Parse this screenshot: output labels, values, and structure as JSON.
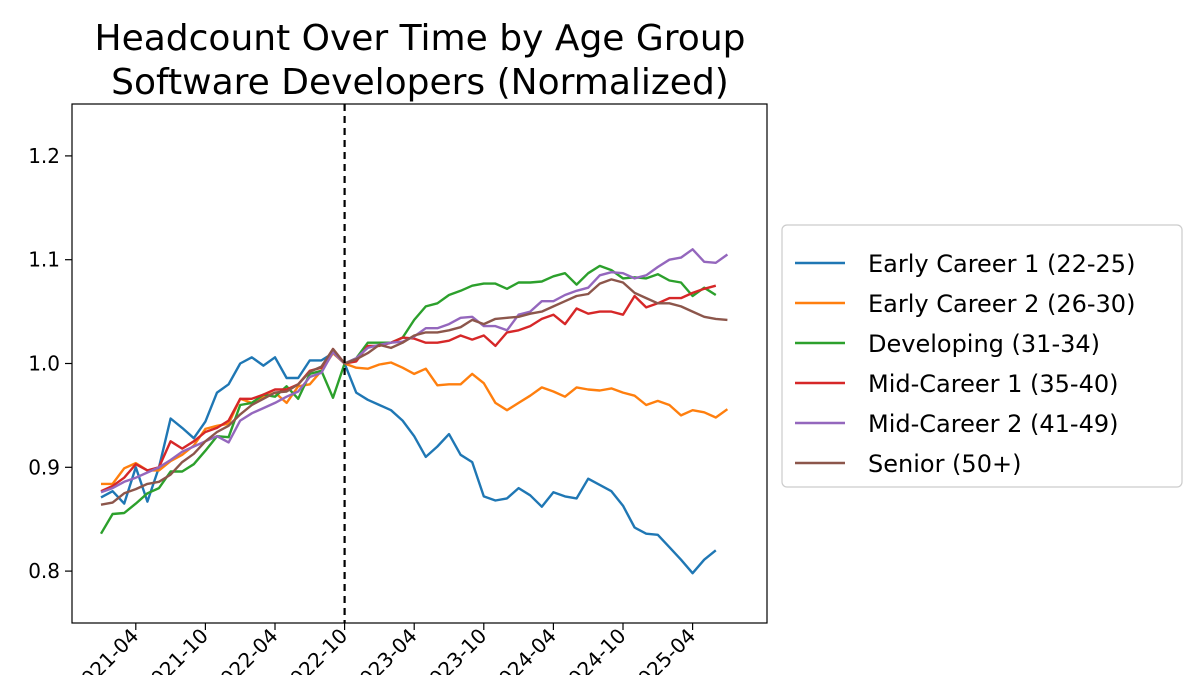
{
  "chart_data": {
    "type": "line",
    "title": [
      "Headcount Over Time by Age Group",
      "Software Developers (Normalized)"
    ],
    "xlabel": "",
    "ylabel": "",
    "ylim": [
      0.75,
      1.25
    ],
    "yticks": [
      0.8,
      0.9,
      1.0,
      1.1,
      1.2
    ],
    "ytick_labels": [
      "0.8",
      "0.9",
      "1.0",
      "1.1",
      "1.2"
    ],
    "xtick_labels": [
      "2021-04",
      "2021-10",
      "2022-04",
      "2022-10",
      "2023-04",
      "2023-10",
      "2024-04",
      "2024-10",
      "2025-04"
    ],
    "x": [
      "2021-01",
      "2021-02",
      "2021-03",
      "2021-04",
      "2021-05",
      "2021-06",
      "2021-07",
      "2021-08",
      "2021-09",
      "2021-10",
      "2021-11",
      "2021-12",
      "2022-01",
      "2022-02",
      "2022-03",
      "2022-04",
      "2022-05",
      "2022-06",
      "2022-07",
      "2022-08",
      "2022-09",
      "2022-10",
      "2022-11",
      "2022-12",
      "2023-01",
      "2023-02",
      "2023-03",
      "2023-04",
      "2023-05",
      "2023-06",
      "2023-07",
      "2023-08",
      "2023-09",
      "2023-10",
      "2023-11",
      "2023-12",
      "2024-01",
      "2024-02",
      "2024-03",
      "2024-04",
      "2024-05",
      "2024-06",
      "2024-07",
      "2024-08",
      "2024-09",
      "2024-10",
      "2024-11",
      "2024-12",
      "2025-01",
      "2025-02",
      "2025-03",
      "2025-04",
      "2025-05",
      "2025-06",
      "2025-07"
    ],
    "reference_line": {
      "x": "2022-10",
      "style": "dashed",
      "color": "#000000"
    },
    "legend_position": "right",
    "grid": false,
    "series": [
      {
        "name": "Early Career 1 (22-25)",
        "color": "#1f77b4",
        "values": [
          0.871,
          0.877,
          0.865,
          0.9,
          0.867,
          0.9,
          0.947,
          0.938,
          0.928,
          0.944,
          0.972,
          0.98,
          1.0,
          1.006,
          0.998,
          1.006,
          0.986,
          0.986,
          1.003,
          1.003,
          1.01,
          1.0,
          0.972,
          0.965,
          0.96,
          0.955,
          0.945,
          0.93,
          0.91,
          0.92,
          0.932,
          0.912,
          0.905,
          0.872,
          0.868,
          0.87,
          0.88,
          0.873,
          0.862,
          0.876,
          0.872,
          0.87,
          0.889,
          0.883,
          0.877,
          0.863,
          0.842,
          0.836,
          0.835,
          0.823,
          0.811,
          0.798,
          0.811,
          0.82,
          null
        ]
      },
      {
        "name": "Early Career 2 (26-30)",
        "color": "#ff7f0e",
        "values": [
          0.884,
          0.884,
          0.899,
          0.904,
          0.897,
          0.897,
          0.906,
          0.912,
          0.921,
          0.937,
          0.94,
          0.942,
          0.966,
          0.962,
          0.968,
          0.972,
          0.962,
          0.978,
          0.98,
          0.993,
          1.01,
          1.0,
          0.996,
          0.995,
          0.999,
          1.001,
          0.996,
          0.99,
          0.995,
          0.979,
          0.98,
          0.98,
          0.99,
          0.981,
          0.962,
          0.955,
          0.962,
          0.969,
          0.977,
          0.973,
          0.968,
          0.977,
          0.975,
          0.974,
          0.976,
          0.972,
          0.969,
          0.96,
          0.964,
          0.96,
          0.95,
          0.955,
          0.953,
          0.948,
          0.956
        ]
      },
      {
        "name": "Developing (31-34)",
        "color": "#2ca02c",
        "values": [
          0.836,
          0.855,
          0.856,
          0.865,
          0.875,
          0.88,
          0.896,
          0.896,
          0.903,
          0.916,
          0.93,
          0.929,
          0.96,
          0.962,
          0.97,
          0.968,
          0.978,
          0.966,
          0.99,
          0.993,
          0.967,
          1.0,
          1.005,
          1.02,
          1.02,
          1.02,
          1.025,
          1.042,
          1.055,
          1.058,
          1.066,
          1.07,
          1.075,
          1.077,
          1.077,
          1.072,
          1.078,
          1.078,
          1.079,
          1.084,
          1.087,
          1.076,
          1.087,
          1.094,
          1.09,
          1.082,
          1.083,
          1.082,
          1.086,
          1.08,
          1.078,
          1.065,
          1.073,
          1.066,
          null
        ]
      },
      {
        "name": "Mid-Career 1 (35-40)",
        "color": "#d62728",
        "values": [
          0.877,
          0.882,
          0.89,
          0.903,
          0.897,
          0.9,
          0.925,
          0.918,
          0.925,
          0.934,
          0.938,
          0.945,
          0.966,
          0.966,
          0.97,
          0.975,
          0.975,
          0.98,
          0.993,
          0.996,
          1.014,
          1.0,
          1.002,
          1.017,
          1.017,
          1.02,
          1.025,
          1.024,
          1.02,
          1.02,
          1.022,
          1.027,
          1.023,
          1.027,
          1.017,
          1.03,
          1.032,
          1.036,
          1.043,
          1.047,
          1.038,
          1.053,
          1.048,
          1.05,
          1.05,
          1.047,
          1.065,
          1.054,
          1.058,
          1.063,
          1.063,
          1.068,
          1.072,
          1.075,
          null
        ]
      },
      {
        "name": "Mid-Career 2 (41-49)",
        "color": "#9467bd",
        "values": [
          0.876,
          0.88,
          0.886,
          0.89,
          0.895,
          0.9,
          0.907,
          0.915,
          0.92,
          0.925,
          0.93,
          0.924,
          0.945,
          0.952,
          0.957,
          0.962,
          0.968,
          0.973,
          0.987,
          0.991,
          1.011,
          1.0,
          1.005,
          1.015,
          1.018,
          1.02,
          1.021,
          1.026,
          1.034,
          1.034,
          1.038,
          1.044,
          1.045,
          1.036,
          1.036,
          1.032,
          1.047,
          1.05,
          1.06,
          1.06,
          1.066,
          1.07,
          1.073,
          1.085,
          1.088,
          1.087,
          1.082,
          1.085,
          1.093,
          1.1,
          1.102,
          1.11,
          1.098,
          1.097,
          1.105
        ]
      },
      {
        "name": "Senior (50+)",
        "color": "#8c564b",
        "values": [
          0.864,
          0.866,
          0.875,
          0.879,
          0.884,
          0.886,
          0.893,
          0.905,
          0.913,
          0.925,
          0.934,
          0.94,
          0.951,
          0.96,
          0.966,
          0.972,
          0.973,
          0.98,
          0.992,
          0.997,
          1.014,
          1.0,
          1.004,
          1.01,
          1.018,
          1.015,
          1.02,
          1.027,
          1.03,
          1.03,
          1.032,
          1.035,
          1.042,
          1.038,
          1.043,
          1.044,
          1.045,
          1.048,
          1.05,
          1.055,
          1.06,
          1.065,
          1.067,
          1.077,
          1.081,
          1.078,
          1.068,
          1.063,
          1.058,
          1.058,
          1.055,
          1.05,
          1.045,
          1.043,
          1.042
        ]
      }
    ]
  }
}
